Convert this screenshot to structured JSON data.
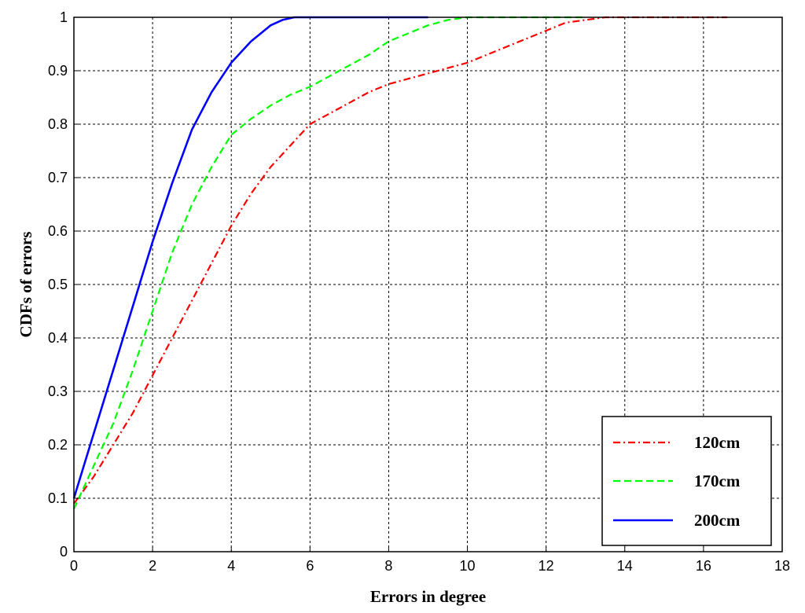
{
  "chart_data": {
    "type": "line",
    "title": "",
    "xlabel": "Errors in degree",
    "ylabel": "CDFs of errors",
    "xlim": [
      0,
      18
    ],
    "ylim": [
      0,
      1
    ],
    "xticks": [
      0,
      2,
      4,
      6,
      8,
      10,
      12,
      14,
      16,
      18
    ],
    "yticks": [
      0,
      0.1,
      0.2,
      0.3,
      0.4,
      0.5,
      0.6,
      0.7,
      0.8,
      0.9,
      1
    ],
    "grid": true,
    "legend_position": "bottom-right",
    "series": [
      {
        "name": "120cm",
        "color": "#ff0000",
        "style": "dash-dot",
        "x": [
          0,
          0.5,
          1,
          1.5,
          2,
          2.5,
          3,
          3.5,
          4,
          4.5,
          5,
          5.5,
          6,
          6.5,
          7,
          7.5,
          8,
          8.5,
          9,
          9.5,
          10,
          10.5,
          11,
          11.5,
          12,
          12.5,
          13,
          13.5,
          14,
          15,
          16,
          16.6
        ],
        "y": [
          0.09,
          0.14,
          0.2,
          0.26,
          0.33,
          0.4,
          0.47,
          0.54,
          0.61,
          0.67,
          0.72,
          0.76,
          0.8,
          0.82,
          0.84,
          0.86,
          0.875,
          0.885,
          0.895,
          0.905,
          0.915,
          0.93,
          0.945,
          0.96,
          0.975,
          0.99,
          0.995,
          1,
          1,
          1,
          1,
          1
        ]
      },
      {
        "name": "170cm",
        "color": "#00ff00",
        "style": "dashed",
        "x": [
          0,
          0.5,
          1,
          1.5,
          2,
          2.5,
          3,
          3.5,
          4,
          4.5,
          5,
          5.5,
          6,
          6.5,
          7,
          7.5,
          8,
          8.5,
          9,
          9.5,
          10,
          10.5,
          11,
          12,
          13
        ],
        "y": [
          0.08,
          0.16,
          0.24,
          0.34,
          0.45,
          0.56,
          0.65,
          0.72,
          0.78,
          0.81,
          0.835,
          0.855,
          0.87,
          0.89,
          0.91,
          0.93,
          0.955,
          0.97,
          0.985,
          0.995,
          1,
          1,
          1,
          1,
          1
        ]
      },
      {
        "name": "200cm",
        "color": "#0000ff",
        "style": "solid",
        "x": [
          0,
          0.5,
          1,
          1.5,
          2,
          2.5,
          3,
          3.5,
          4,
          4.5,
          5,
          5.3,
          5.6,
          6,
          7,
          8,
          9
        ],
        "y": [
          0.1,
          0.22,
          0.34,
          0.46,
          0.58,
          0.69,
          0.79,
          0.86,
          0.915,
          0.955,
          0.985,
          0.995,
          1,
          1,
          1,
          1,
          1
        ]
      }
    ]
  }
}
